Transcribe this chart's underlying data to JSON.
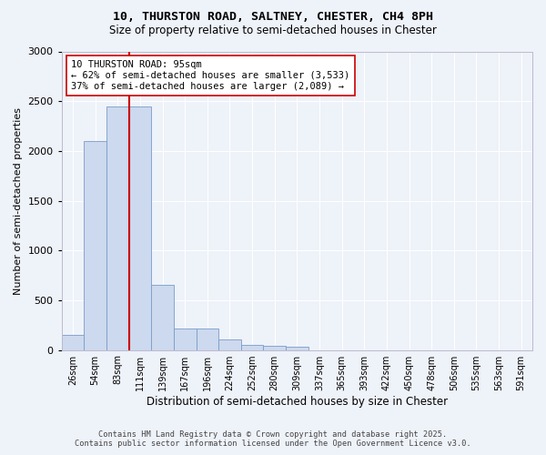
{
  "title_line1": "10, THURSTON ROAD, SALTNEY, CHESTER, CH4 8PH",
  "title_line2": "Size of property relative to semi-detached houses in Chester",
  "xlabel": "Distribution of semi-detached houses by size in Chester",
  "ylabel": "Number of semi-detached properties",
  "bar_color": "#ccd9ee",
  "bar_edge_color": "#7a9cc8",
  "bins": [
    "26sqm",
    "54sqm",
    "83sqm",
    "111sqm",
    "139sqm",
    "167sqm",
    "196sqm",
    "224sqm",
    "252sqm",
    "280sqm",
    "309sqm",
    "337sqm",
    "365sqm",
    "393sqm",
    "422sqm",
    "450sqm",
    "478sqm",
    "506sqm",
    "535sqm",
    "563sqm",
    "591sqm"
  ],
  "values": [
    155,
    2100,
    2450,
    2450,
    650,
    220,
    220,
    110,
    50,
    40,
    35,
    0,
    0,
    0,
    0,
    0,
    0,
    0,
    0,
    0,
    0
  ],
  "vline_x": 2.5,
  "vline_color": "#cc0000",
  "annotation_text": "10 THURSTON ROAD: 95sqm\n← 62% of semi-detached houses are smaller (3,533)\n37% of semi-detached houses are larger (2,089) →",
  "annotation_box_color": "#ffffff",
  "annotation_border_color": "#cc0000",
  "ylim": [
    0,
    3000
  ],
  "yticks": [
    0,
    500,
    1000,
    1500,
    2000,
    2500,
    3000
  ],
  "footer_line1": "Contains HM Land Registry data © Crown copyright and database right 2025.",
  "footer_line2": "Contains public sector information licensed under the Open Government Licence v3.0.",
  "background_color": "#eef2f9",
  "grid_color": "#ffffff"
}
